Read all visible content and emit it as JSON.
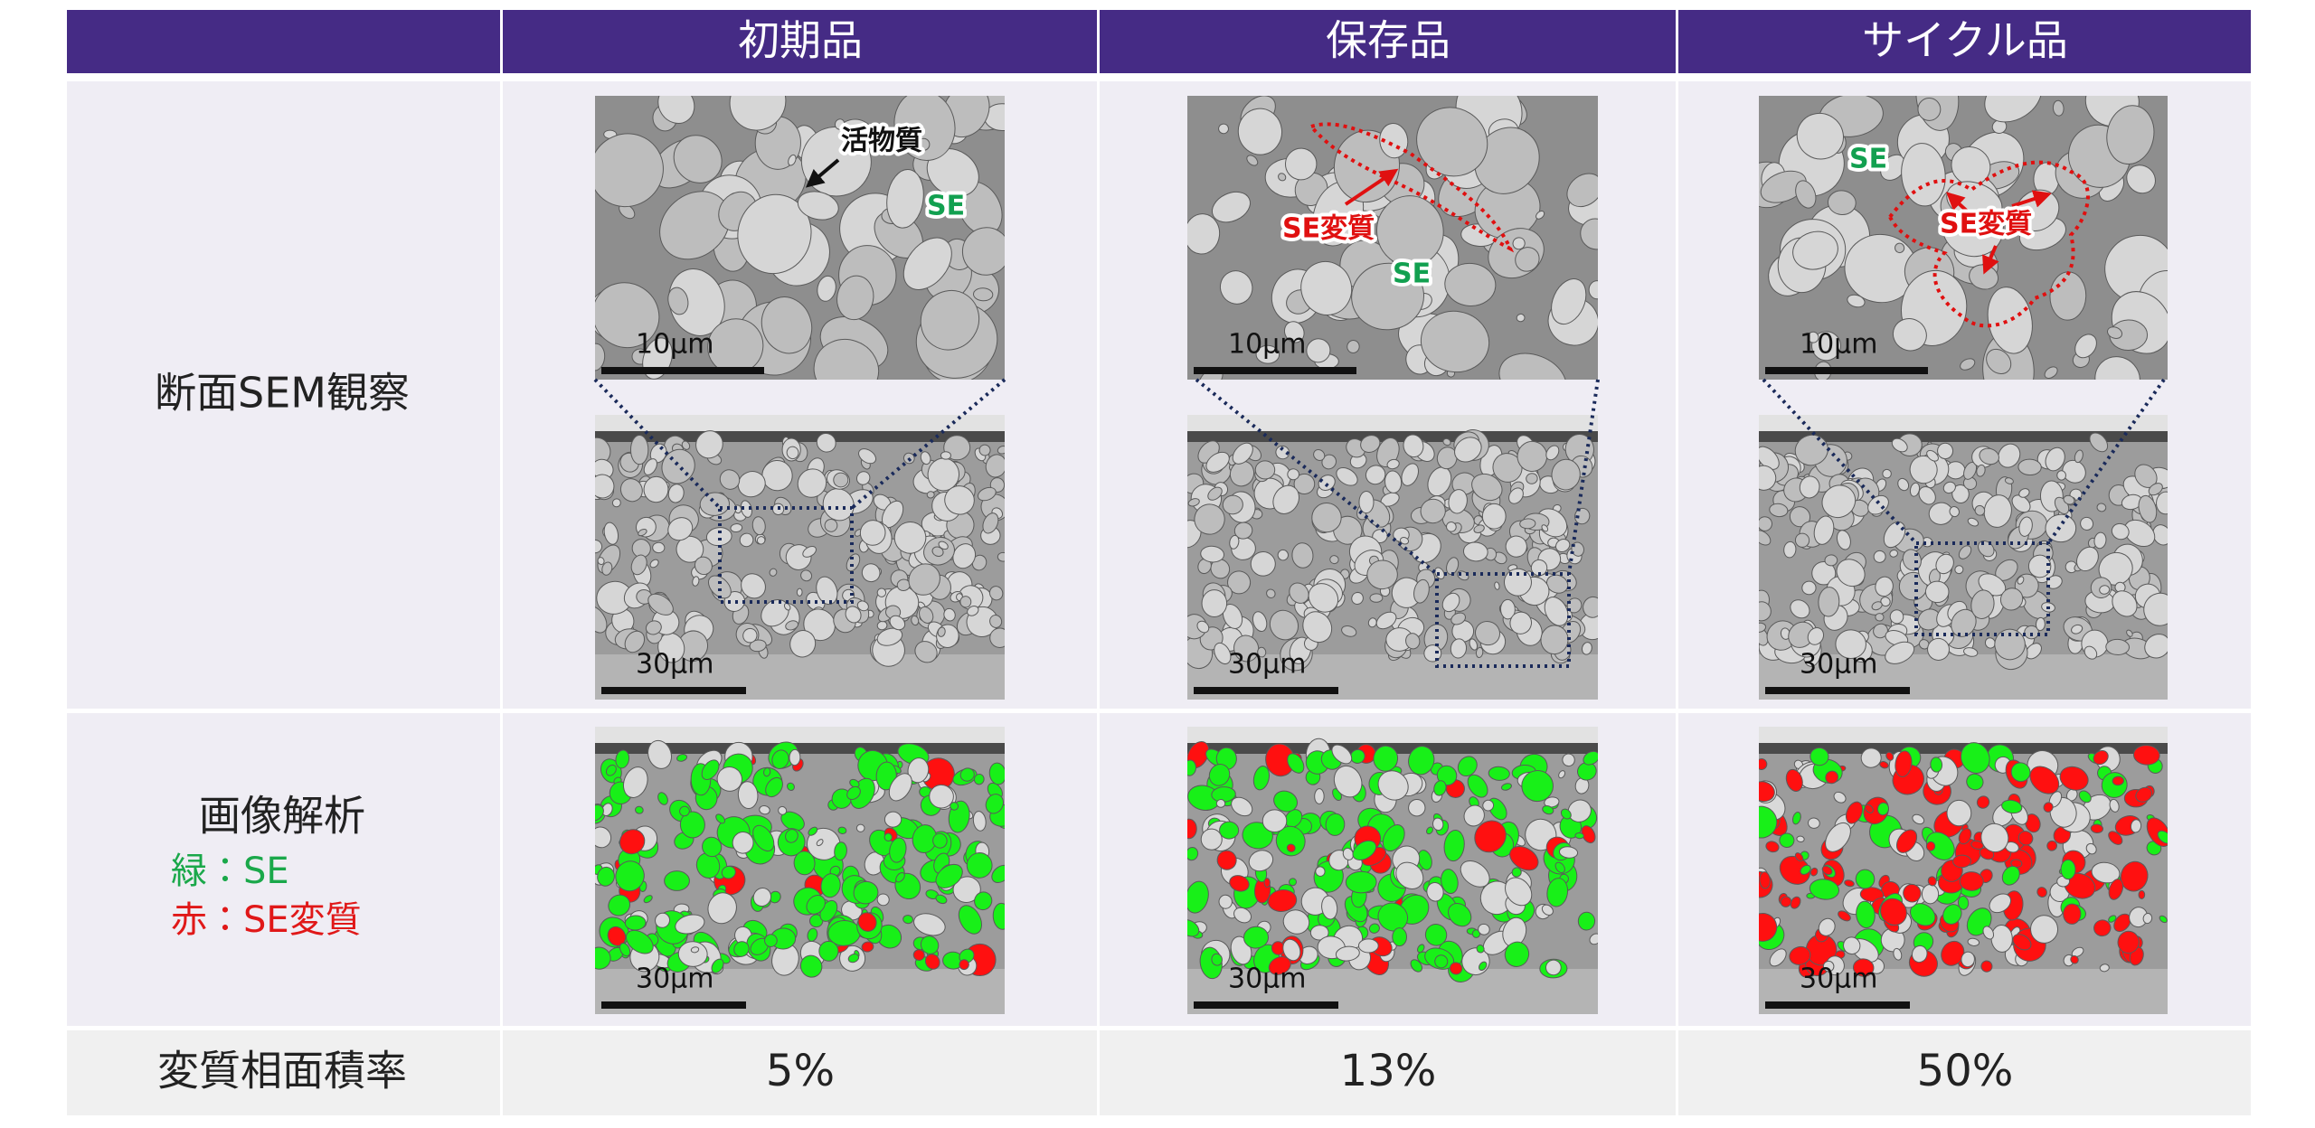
{
  "table": {
    "columns": [
      "初期品",
      "保存品",
      "サイクル品"
    ],
    "rows": [
      {
        "label": "断面SEM観察"
      },
      {
        "label": "画像解析",
        "legend": [
          "緑：SE",
          "赤：SE変質"
        ]
      },
      {
        "label": "変質相面積率",
        "cells": [
          "5%",
          "13%",
          "50%"
        ]
      }
    ]
  },
  "images": [
    {
      "annotations": [
        "活物質",
        "SE"
      ],
      "top_scale": "10µm",
      "bottom_scale": "30µm",
      "analysis_scale": "30µm"
    },
    {
      "annotations": [
        "SE変質",
        "SE"
      ],
      "top_scale": "10µm",
      "bottom_scale": "30µm",
      "analysis_scale": "30µm"
    },
    {
      "annotations": [
        "SE",
        "SE変質"
      ],
      "top_scale": "10µm",
      "bottom_scale": "30µm",
      "analysis_scale": "30µm"
    }
  ]
}
